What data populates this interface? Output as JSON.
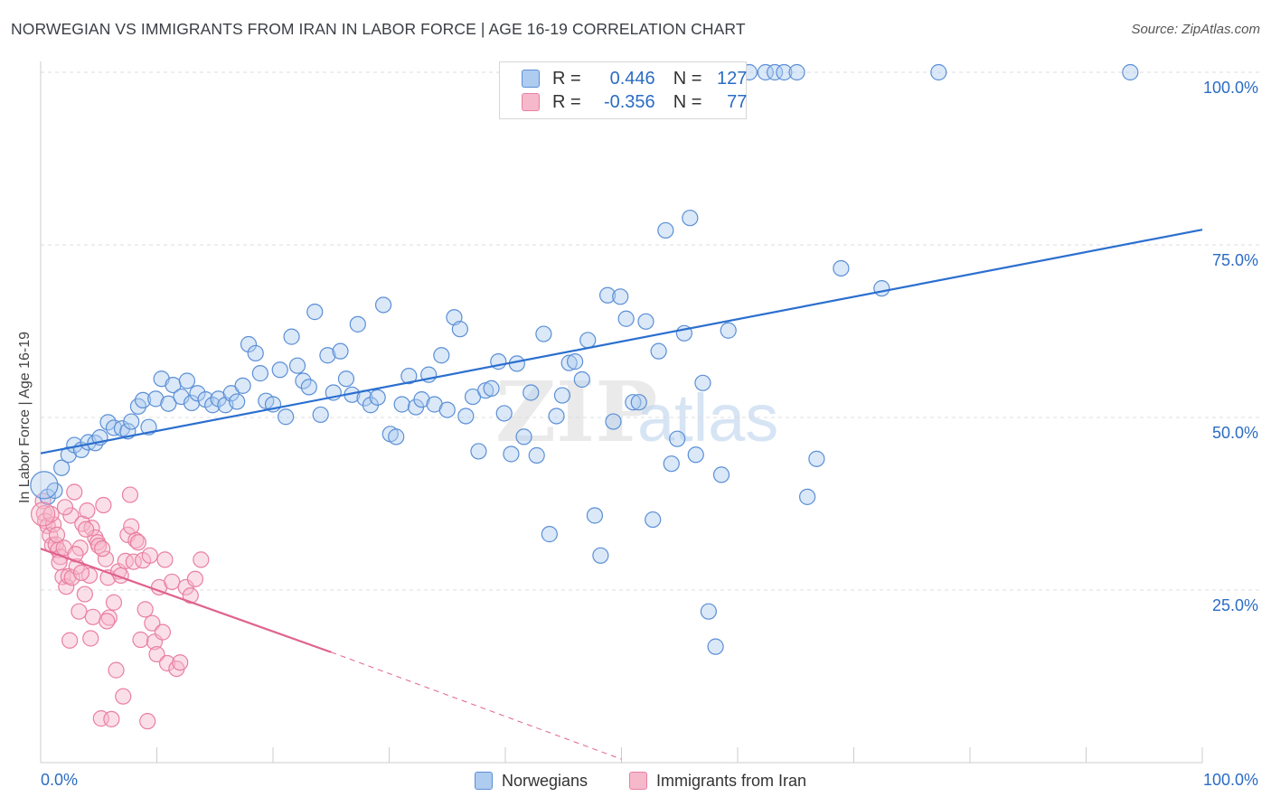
{
  "header": {
    "title": "NORWEGIAN VS IMMIGRANTS FROM IRAN IN LABOR FORCE | AGE 16-19 CORRELATION CHART",
    "source": "Source: ZipAtlas.com"
  },
  "watermark": {
    "left": "ZIP",
    "right": "atlas"
  },
  "legend": {
    "rows": [
      {
        "r_label": "R =",
        "r_value": "0.446",
        "n_label": "N =",
        "n_value": "127"
      },
      {
        "r_label": "R =",
        "r_value": "-0.356",
        "n_label": "N =",
        "n_value": "77"
      }
    ]
  },
  "colors": {
    "blue_fill": "#aecbf0",
    "blue_stroke": "#5b8fd6",
    "blue_line": "#2b6fcf",
    "pink_fill": "#f6b8cb",
    "pink_stroke": "#e97fa1",
    "pink_line": "#e0628e",
    "tick_label": "#2b6cc4",
    "grid": "#dcdcdc"
  },
  "chart_data": {
    "type": "scatter",
    "title": "NORWEGIAN VS IMMIGRANTS FROM IRAN IN LABOR FORCE | AGE 16-19 CORRELATION CHART",
    "ylabel": "In Labor Force | Age 16-19",
    "xlabel": "",
    "xlim": [
      0,
      100
    ],
    "ylim": [
      0,
      100
    ],
    "x_tick_labels": [
      "0.0%",
      "100.0%"
    ],
    "y_ticks": [
      25,
      50,
      75,
      100
    ],
    "y_tick_labels": [
      "25.0%",
      "50.0%",
      "75.0%",
      "100.0%"
    ],
    "grid": true,
    "legend_position": "bottom",
    "series": [
      {
        "name": "Norwegians",
        "color": "#5b8fd6",
        "points": [
          [
            0.6,
            38.5
          ],
          [
            1.2,
            39.4
          ],
          [
            1.8,
            42.7
          ],
          [
            2.4,
            44.6
          ],
          [
            2.9,
            46.0
          ],
          [
            3.5,
            45.3
          ],
          [
            4.1,
            46.4
          ],
          [
            4.7,
            46.3
          ],
          [
            5.1,
            47.1
          ],
          [
            5.8,
            49.3
          ],
          [
            6.3,
            48.5
          ],
          [
            7.0,
            48.4
          ],
          [
            7.5,
            48.0
          ],
          [
            7.8,
            49.4
          ],
          [
            8.4,
            51.6
          ],
          [
            8.8,
            52.5
          ],
          [
            9.3,
            48.6
          ],
          [
            9.9,
            52.7
          ],
          [
            10.4,
            55.6
          ],
          [
            11.0,
            52.0
          ],
          [
            11.4,
            54.7
          ],
          [
            12.1,
            53.0
          ],
          [
            12.6,
            55.3
          ],
          [
            13.0,
            52.1
          ],
          [
            13.5,
            53.5
          ],
          [
            14.2,
            52.6
          ],
          [
            14.8,
            51.8
          ],
          [
            15.3,
            52.7
          ],
          [
            15.9,
            51.8
          ],
          [
            16.4,
            53.5
          ],
          [
            16.9,
            52.3
          ],
          [
            17.4,
            54.6
          ],
          [
            17.9,
            60.6
          ],
          [
            18.5,
            59.3
          ],
          [
            18.9,
            56.4
          ],
          [
            19.4,
            52.4
          ],
          [
            20.0,
            51.9
          ],
          [
            20.6,
            56.9
          ],
          [
            21.1,
            50.1
          ],
          [
            21.6,
            61.7
          ],
          [
            22.1,
            57.5
          ],
          [
            22.6,
            55.3
          ],
          [
            23.1,
            54.4
          ],
          [
            23.6,
            65.3
          ],
          [
            24.1,
            50.4
          ],
          [
            24.7,
            59.0
          ],
          [
            25.2,
            53.6
          ],
          [
            25.8,
            59.6
          ],
          [
            26.3,
            55.6
          ],
          [
            26.8,
            53.3
          ],
          [
            27.3,
            63.5
          ],
          [
            27.9,
            52.8
          ],
          [
            28.4,
            51.8
          ],
          [
            29.0,
            52.9
          ],
          [
            29.5,
            66.3
          ],
          [
            30.1,
            47.6
          ],
          [
            30.6,
            47.2
          ],
          [
            31.1,
            51.9
          ],
          [
            31.7,
            56.0
          ],
          [
            32.3,
            51.5
          ],
          [
            32.8,
            52.6
          ],
          [
            33.4,
            56.2
          ],
          [
            33.9,
            51.9
          ],
          [
            34.5,
            59.0
          ],
          [
            35.0,
            51.1
          ],
          [
            35.6,
            64.5
          ],
          [
            36.1,
            62.8
          ],
          [
            36.6,
            50.2
          ],
          [
            37.2,
            53.0
          ],
          [
            37.7,
            45.1
          ],
          [
            38.3,
            53.9
          ],
          [
            38.8,
            54.2
          ],
          [
            39.4,
            58.1
          ],
          [
            39.9,
            50.6
          ],
          [
            40.5,
            44.7
          ],
          [
            41.0,
            57.8
          ],
          [
            41.6,
            47.2
          ],
          [
            42.2,
            53.6
          ],
          [
            42.7,
            44.5
          ],
          [
            43.3,
            62.1
          ],
          [
            43.8,
            33.1
          ],
          [
            44.4,
            50.2
          ],
          [
            44.9,
            53.2
          ],
          [
            45.5,
            57.9
          ],
          [
            46.0,
            58.1
          ],
          [
            46.6,
            55.5
          ],
          [
            47.1,
            61.2
          ],
          [
            47.7,
            35.8
          ],
          [
            48.2,
            30.0
          ],
          [
            48.8,
            67.7
          ],
          [
            49.3,
            49.4
          ],
          [
            49.9,
            67.5
          ],
          [
            50.4,
            64.3
          ],
          [
            51.0,
            52.2
          ],
          [
            51.5,
            52.2
          ],
          [
            52.1,
            63.9
          ],
          [
            52.7,
            35.2
          ],
          [
            53.2,
            59.6
          ],
          [
            53.8,
            77.1
          ],
          [
            54.3,
            43.3
          ],
          [
            54.8,
            46.9
          ],
          [
            55.4,
            62.2
          ],
          [
            55.9,
            78.9
          ],
          [
            56.4,
            44.6
          ],
          [
            57.0,
            55.0
          ],
          [
            57.5,
            21.9
          ],
          [
            58.1,
            16.8
          ],
          [
            58.6,
            41.7
          ],
          [
            59.2,
            62.6
          ],
          [
            61.0,
            100.0
          ],
          [
            62.4,
            100.0
          ],
          [
            63.2,
            100.0
          ],
          [
            64.0,
            100.0
          ],
          [
            65.1,
            100.0
          ],
          [
            66.0,
            38.5
          ],
          [
            66.8,
            44.0
          ],
          [
            68.9,
            71.6
          ],
          [
            72.4,
            68.7
          ],
          [
            77.3,
            100.0
          ],
          [
            93.8,
            100.0
          ]
        ]
      },
      {
        "name": "Immigrants from Iran",
        "color": "#e97fa1",
        "points": [
          [
            0.2,
            37.9
          ],
          [
            0.3,
            36.1
          ],
          [
            0.4,
            35.0
          ],
          [
            0.6,
            34.3
          ],
          [
            0.8,
            32.9
          ],
          [
            1.0,
            31.5
          ],
          [
            1.1,
            34.5
          ],
          [
            1.3,
            31.6
          ],
          [
            1.5,
            30.8
          ],
          [
            1.7,
            29.8
          ],
          [
            1.9,
            26.9
          ],
          [
            2.0,
            31.1
          ],
          [
            2.2,
            25.5
          ],
          [
            2.4,
            27.0
          ],
          [
            2.6,
            35.8
          ],
          [
            2.7,
            26.8
          ],
          [
            2.9,
            39.2
          ],
          [
            3.1,
            28.4
          ],
          [
            3.3,
            21.9
          ],
          [
            3.4,
            31.1
          ],
          [
            3.6,
            34.6
          ],
          [
            3.8,
            24.4
          ],
          [
            4.0,
            36.5
          ],
          [
            4.2,
            27.1
          ],
          [
            4.4,
            34.0
          ],
          [
            4.5,
            21.1
          ],
          [
            4.7,
            32.6
          ],
          [
            4.9,
            31.9
          ],
          [
            5.0,
            31.4
          ],
          [
            5.2,
            6.4
          ],
          [
            5.4,
            37.3
          ],
          [
            5.6,
            29.5
          ],
          [
            5.8,
            26.8
          ],
          [
            5.9,
            21.0
          ],
          [
            6.1,
            6.3
          ],
          [
            6.3,
            23.2
          ],
          [
            6.5,
            13.4
          ],
          [
            6.7,
            27.7
          ],
          [
            6.9,
            27.1
          ],
          [
            7.1,
            9.6
          ],
          [
            7.3,
            29.2
          ],
          [
            7.5,
            33.0
          ],
          [
            7.7,
            38.8
          ],
          [
            7.8,
            34.2
          ],
          [
            8.0,
            29.1
          ],
          [
            8.2,
            32.2
          ],
          [
            8.4,
            31.9
          ],
          [
            8.6,
            17.8
          ],
          [
            8.8,
            29.3
          ],
          [
            9.0,
            22.2
          ],
          [
            9.2,
            6.0
          ],
          [
            9.4,
            30.0
          ],
          [
            9.6,
            20.2
          ],
          [
            9.8,
            17.5
          ],
          [
            10.0,
            15.7
          ],
          [
            10.2,
            25.4
          ],
          [
            10.5,
            18.9
          ],
          [
            10.7,
            29.4
          ],
          [
            10.9,
            14.4
          ],
          [
            11.3,
            26.2
          ],
          [
            11.7,
            13.6
          ],
          [
            12.0,
            14.5
          ],
          [
            12.5,
            25.4
          ],
          [
            12.9,
            24.2
          ],
          [
            13.3,
            26.6
          ],
          [
            13.8,
            29.4
          ],
          [
            0.9,
            36.0
          ],
          [
            1.4,
            33.0
          ],
          [
            1.6,
            29.0
          ],
          [
            2.1,
            37.0
          ],
          [
            2.5,
            17.7
          ],
          [
            3.0,
            30.2
          ],
          [
            3.5,
            27.5
          ],
          [
            3.9,
            33.8
          ],
          [
            4.3,
            18.0
          ],
          [
            5.3,
            31.0
          ],
          [
            5.7,
            20.5
          ]
        ]
      }
    ],
    "trendlines": [
      {
        "series": "Norwegians",
        "x": [
          0,
          100
        ],
        "y": [
          44.8,
          77.2
        ],
        "style": "solid"
      },
      {
        "series": "Immigrants from Iran",
        "x": [
          0,
          25
        ],
        "y": [
          31.0,
          16.0
        ],
        "style": "solid"
      },
      {
        "series": "Immigrants from Iran",
        "x": [
          25,
          50
        ],
        "y": [
          16.0,
          0.5
        ],
        "style": "dashed"
      }
    ]
  }
}
